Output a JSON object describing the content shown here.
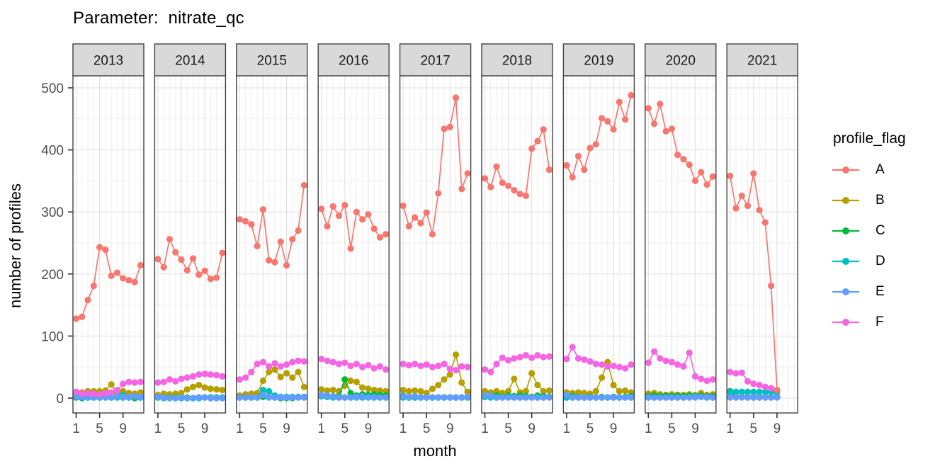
{
  "header": {
    "title": "Parameter:  nitrate_qc"
  },
  "axes": {
    "x_title": "month",
    "y_title": "number of profiles",
    "x_ticks": [
      1,
      5,
      9
    ],
    "y_ticks": [
      0,
      100,
      200,
      300,
      400,
      500
    ]
  },
  "legend": {
    "title": "profile_flag",
    "items": [
      {
        "label": "A",
        "color": "#F8766D"
      },
      {
        "label": "B",
        "color": "#B79F00"
      },
      {
        "label": "C",
        "color": "#00BA38"
      },
      {
        "label": "D",
        "color": "#00BFC4"
      },
      {
        "label": "E",
        "color": "#619CFF"
      },
      {
        "label": "F",
        "color": "#F564E3"
      }
    ]
  },
  "chart_data": {
    "type": "line",
    "title": "Parameter:  nitrate_qc",
    "xlabel": "month",
    "ylabel": "number of profiles",
    "ylim": [
      0,
      500
    ],
    "x_range": [
      1,
      12
    ],
    "x_tick_labels": [
      "1",
      "5",
      "9"
    ],
    "grid": true,
    "legend_position": "right",
    "legend_title": "profile_flag",
    "facet_variable": "year",
    "series_colors": {
      "A": "#F8766D",
      "B": "#B79F00",
      "C": "#00BA38",
      "D": "#00BFC4",
      "E": "#619CFF",
      "F": "#F564E3"
    },
    "draw_order": [
      "B",
      "C",
      "D",
      "E",
      "F",
      "A"
    ],
    "facets": [
      {
        "label": "2013",
        "series": {
          "A": [
            128,
            131,
            158,
            181,
            243,
            239,
            197,
            202,
            193,
            190,
            187,
            214
          ],
          "B": [
            5,
            9,
            11,
            11,
            11,
            12,
            22,
            7,
            11,
            8,
            7,
            9
          ],
          "C": [
            1,
            0,
            1,
            1,
            1,
            1,
            1,
            1,
            1,
            1,
            0,
            1
          ],
          "D": [
            2,
            1,
            1,
            1,
            1,
            2,
            1,
            1,
            5,
            1,
            3,
            1
          ],
          "E": [
            3,
            2,
            2,
            1,
            2,
            1,
            2,
            3,
            2,
            2,
            3,
            2
          ],
          "F": [
            10,
            7,
            8,
            7,
            6,
            8,
            9,
            13,
            23,
            26,
            25,
            26
          ]
        }
      },
      {
        "label": "2014",
        "series": {
          "A": [
            224,
            211,
            256,
            235,
            223,
            206,
            225,
            199,
            205,
            192,
            194,
            234
          ],
          "B": [
            5,
            7,
            6,
            7,
            8,
            14,
            18,
            21,
            17,
            15,
            14,
            13
          ],
          "C": [
            1,
            1,
            1,
            1,
            1,
            1,
            0,
            1,
            1,
            1,
            1,
            1
          ],
          "D": [
            1,
            0,
            0,
            0,
            0,
            0,
            0,
            0,
            1,
            0,
            0,
            1
          ],
          "E": [
            2,
            1,
            0,
            0,
            1,
            0,
            0,
            1,
            1,
            0,
            0,
            0
          ],
          "F": [
            25,
            26,
            30,
            27,
            31,
            33,
            35,
            38,
            39,
            38,
            37,
            35
          ]
        }
      },
      {
        "label": "2015",
        "series": {
          "A": [
            288,
            285,
            280,
            245,
            304,
            222,
            219,
            252,
            214,
            256,
            270,
            343
          ],
          "B": [
            4,
            6,
            7,
            8,
            28,
            42,
            46,
            34,
            40,
            33,
            42,
            18
          ],
          "C": [
            1,
            1,
            1,
            1,
            2,
            2,
            1,
            0,
            0,
            0,
            1,
            1
          ],
          "D": [
            1,
            1,
            1,
            1,
            13,
            11,
            4,
            2,
            2,
            2,
            2,
            2
          ],
          "E": [
            1,
            1,
            1,
            1,
            5,
            1,
            1,
            1,
            1,
            1,
            1,
            1
          ],
          "F": [
            30,
            33,
            42,
            55,
            58,
            51,
            56,
            51,
            54,
            58,
            60,
            59
          ]
        }
      },
      {
        "label": "2016",
        "series": {
          "A": [
            305,
            277,
            309,
            294,
            311,
            241,
            300,
            288,
            296,
            273,
            259,
            264
          ],
          "B": [
            14,
            12,
            13,
            11,
            20,
            28,
            26,
            17,
            15,
            13,
            12,
            11
          ],
          "C": [
            3,
            3,
            3,
            3,
            30,
            8,
            4,
            6,
            5,
            6,
            5,
            4
          ],
          "D": [
            3,
            2,
            1,
            1,
            1,
            1,
            1,
            1,
            2,
            1,
            1,
            1
          ],
          "E": [
            5,
            4,
            3,
            1,
            1,
            1,
            2,
            3,
            1,
            2,
            1,
            1
          ],
          "F": [
            63,
            60,
            58,
            55,
            57,
            52,
            55,
            50,
            53,
            48,
            51,
            46
          ]
        }
      },
      {
        "label": "2017",
        "series": {
          "A": [
            310,
            277,
            291,
            282,
            299,
            264,
            330,
            434,
            437,
            484,
            337,
            362
          ],
          "B": [
            13,
            11,
            12,
            11,
            8,
            15,
            21,
            30,
            38,
            70,
            25,
            10
          ],
          "C": [
            4,
            1,
            1,
            1,
            1,
            1,
            1,
            1,
            1,
            1,
            1,
            1
          ],
          "D": [
            1,
            1,
            1,
            1,
            1,
            1,
            1,
            1,
            1,
            1,
            1,
            1
          ],
          "E": [
            3,
            2,
            3,
            1,
            1,
            1,
            1,
            1,
            1,
            1,
            1,
            2
          ],
          "F": [
            55,
            53,
            55,
            52,
            54,
            50,
            52,
            55,
            47,
            45,
            51,
            50
          ]
        }
      },
      {
        "label": "2018",
        "series": {
          "A": [
            354,
            340,
            373,
            347,
            342,
            335,
            329,
            326,
            402,
            414,
            433,
            368
          ],
          "B": [
            11,
            9,
            11,
            8,
            11,
            31,
            9,
            11,
            40,
            21,
            11,
            12
          ],
          "C": [
            2,
            4,
            4,
            2,
            4,
            3,
            4,
            3,
            2,
            4,
            3,
            2
          ],
          "D": [
            3,
            1,
            1,
            1,
            2,
            1,
            1,
            1,
            1,
            1,
            1,
            2
          ],
          "E": [
            4,
            4,
            1,
            1,
            1,
            1,
            1,
            1,
            1,
            1,
            1,
            1
          ],
          "F": [
            46,
            42,
            55,
            65,
            61,
            64,
            66,
            69,
            65,
            69,
            66,
            67
          ]
        }
      },
      {
        "label": "2019",
        "series": {
          "A": [
            375,
            356,
            390,
            368,
            403,
            409,
            451,
            446,
            433,
            477,
            449,
            488
          ],
          "B": [
            9,
            8,
            9,
            8,
            7,
            11,
            33,
            58,
            21,
            11,
            12,
            9
          ],
          "C": [
            1,
            3,
            2,
            1,
            2,
            1,
            2,
            1,
            2,
            1,
            2,
            3
          ],
          "D": [
            1,
            1,
            1,
            1,
            1,
            1,
            1,
            1,
            1,
            1,
            1,
            1
          ],
          "E": [
            5,
            1,
            1,
            1,
            1,
            1,
            1,
            1,
            1,
            1,
            1,
            1
          ],
          "F": [
            63,
            82,
            64,
            62,
            59,
            55,
            54,
            51,
            52,
            50,
            48,
            54
          ]
        }
      },
      {
        "label": "2020",
        "series": {
          "A": [
            467,
            442,
            474,
            430,
            434,
            392,
            385,
            376,
            350,
            364,
            344,
            357
          ],
          "B": [
            7,
            8,
            6,
            5,
            6,
            5,
            5,
            6,
            5,
            8,
            5,
            6
          ],
          "C": [
            3,
            4,
            3,
            4,
            3,
            4,
            3,
            4,
            3,
            4,
            3,
            3
          ],
          "D": [
            1,
            1,
            1,
            1,
            1,
            1,
            1,
            2,
            3,
            2,
            1,
            1
          ],
          "E": [
            1,
            1,
            1,
            1,
            1,
            1,
            1,
            1,
            1,
            2,
            2,
            1
          ],
          "F": [
            57,
            75,
            64,
            60,
            58,
            54,
            51,
            73,
            35,
            31,
            28,
            30
          ]
        }
      },
      {
        "label": "2021",
        "series": {
          "A": [
            358,
            306,
            326,
            310,
            362,
            303,
            283,
            181,
            13
          ],
          "B": [
            2,
            2,
            2,
            1,
            1,
            1,
            1,
            1,
            2
          ],
          "C": [
            11,
            2,
            2,
            2,
            2,
            2,
            2,
            2,
            2
          ],
          "D": [
            10,
            10,
            10,
            10,
            10,
            10,
            10,
            10,
            10
          ],
          "E": [
            1,
            1,
            1,
            1,
            1,
            1,
            1,
            1,
            1
          ],
          "F": [
            42,
            40,
            41,
            27,
            23,
            21,
            18,
            16,
            13
          ]
        }
      }
    ]
  }
}
